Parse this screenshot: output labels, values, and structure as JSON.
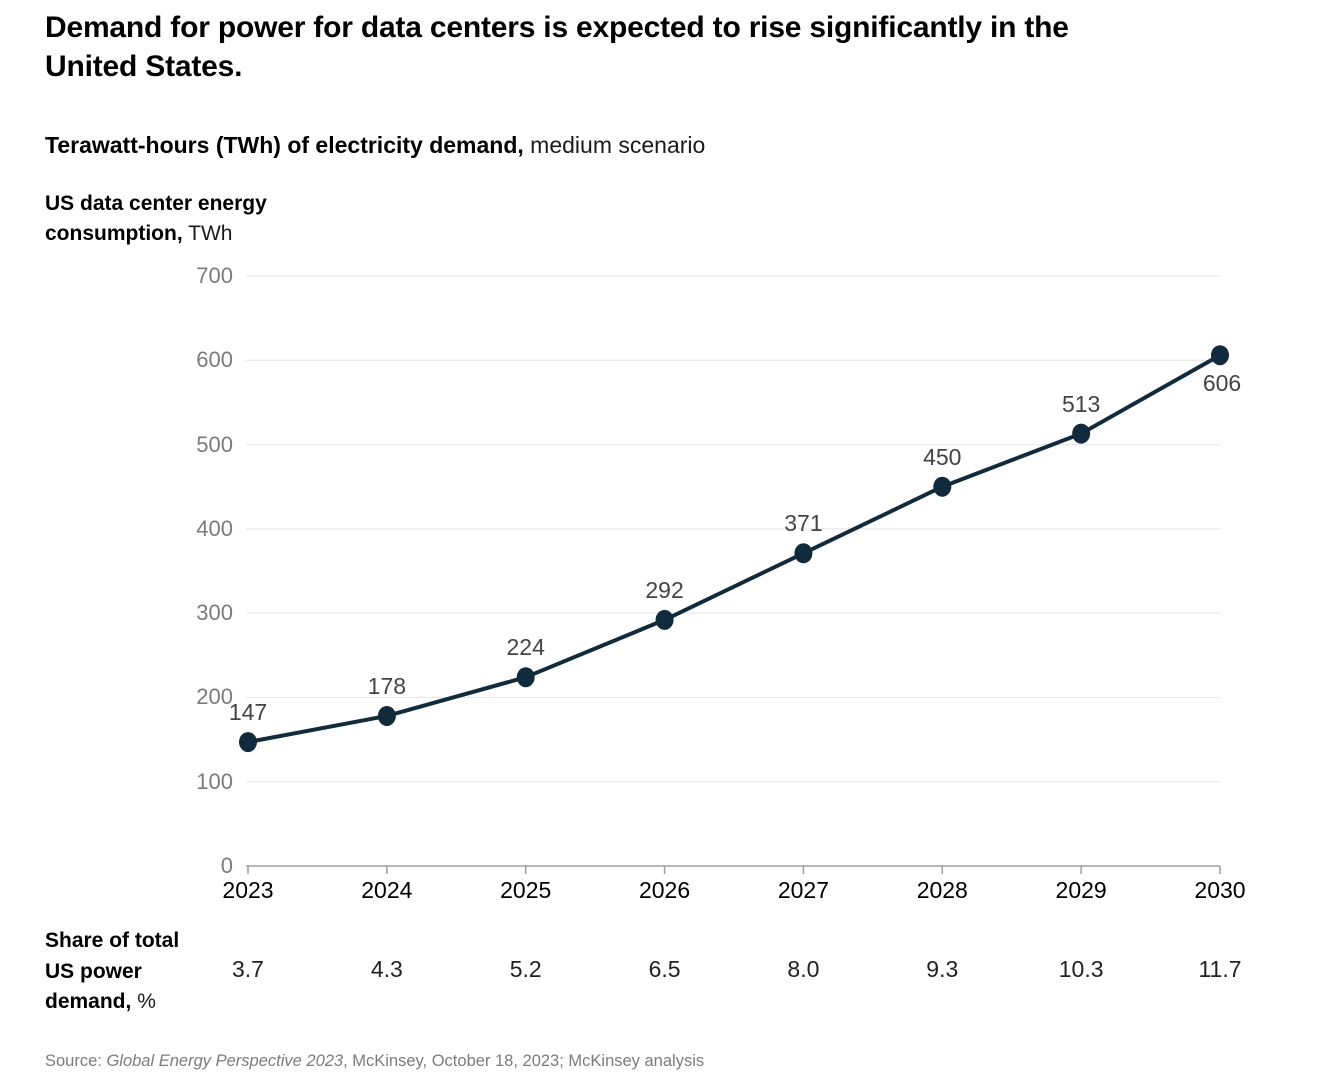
{
  "header": {
    "title_lines": [
      "Demand for power for data centers is expected to rise significantly in the",
      "United States."
    ],
    "subtitle_bold": "Terawatt-hours (TWh) of electricity demand,",
    "subtitle_regular": " medium scenario"
  },
  "axis_label": {
    "line1_bold": "US data center energy",
    "line2_bold": "consumption,",
    "line2_regular": " TWh"
  },
  "chart_data": {
    "type": "line",
    "title": "Terawatt-hours (TWh) of electricity demand, medium scenario",
    "ylabel": "US data center energy consumption, TWh",
    "x": [
      2023,
      2024,
      2025,
      2026,
      2027,
      2028,
      2029,
      2030
    ],
    "series": [
      {
        "name": "US data center energy consumption, TWh",
        "values": [
          147,
          178,
          224,
          292,
          371,
          450,
          513,
          606
        ]
      }
    ],
    "data_labels": [
      "147",
      "178",
      "224",
      "292",
      "371",
      "450",
      "513",
      "606"
    ],
    "ylim": [
      0,
      700
    ],
    "yticks": [
      0,
      100,
      200,
      300,
      400,
      500,
      600,
      700
    ],
    "grid": true,
    "legend": "none",
    "share_of_total_percent": [
      3.7,
      4.3,
      5.2,
      6.5,
      8.0,
      9.3,
      10.3,
      11.7
    ]
  },
  "share_row": {
    "label_lines": [
      "Share of total",
      "US power"
    ],
    "label_line3_bold": "demand,",
    "label_line3_regular": " %",
    "values": [
      "3.7",
      "4.3",
      "5.2",
      "6.5",
      "8.0",
      "9.3",
      "10.3",
      "11.7"
    ]
  },
  "source": {
    "prefix": "Source: ",
    "italic": "Global Energy Perspective 2023",
    "suffix": ", McKinsey, October 18, 2023; McKinsey analysis"
  },
  "colors": {
    "line": "#112A3C",
    "marker": "#112A3C",
    "grid": "#e4e4e4",
    "axis": "#9d9d9d",
    "y_tick_label": "#7b7b7b",
    "x_tick_label": "#000000",
    "data_label": "#444444",
    "title_text": "#000000",
    "muted_text": "#7c7c7c"
  }
}
